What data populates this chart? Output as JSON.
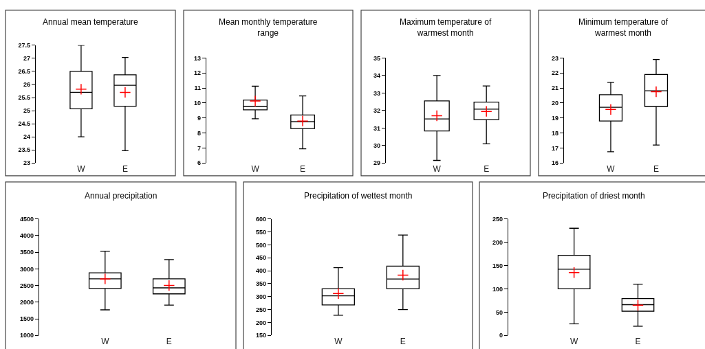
{
  "chart_data": [
    {
      "type": "box",
      "title": "Annual mean temperature",
      "categories": [
        "W",
        "E"
      ],
      "ylim": [
        23,
        27.5
      ],
      "yticks": [
        23,
        23.5,
        24,
        24.5,
        25,
        25.5,
        26,
        26.5,
        27,
        27.5
      ],
      "marker": "cross",
      "boxes": [
        {
          "low": 24,
          "q1": 25.07,
          "median": 25.7,
          "q3": 26.5,
          "high": 27.5,
          "mean": 25.82
        },
        {
          "low": 23.47,
          "q1": 25.17,
          "median": 25.97,
          "q3": 26.37,
          "high": 27.03,
          "mean": 25.7
        }
      ]
    },
    {
      "type": "box",
      "title": "Mean monthly temperature range",
      "categories": [
        "W",
        "E"
      ],
      "ylim": [
        6,
        13
      ],
      "yticks": [
        6,
        7,
        8,
        9,
        10,
        11,
        12,
        13
      ],
      "marker": "cross",
      "boxes": [
        {
          "low": 8.95,
          "q1": 9.55,
          "median": 9.78,
          "q3": 10.2,
          "high": 11.12,
          "mean": 10.13
        },
        {
          "low": 6.95,
          "q1": 8.3,
          "median": 8.75,
          "q3": 9.2,
          "high": 10.47,
          "mean": 8.8
        }
      ]
    },
    {
      "type": "box",
      "title": "Maximum temperature of warmest month",
      "categories": [
        "W",
        "E"
      ],
      "ylim": [
        29,
        35
      ],
      "yticks": [
        29,
        30,
        31,
        32,
        33,
        34,
        35
      ],
      "marker": "cross",
      "boxes": [
        {
          "low": 29.15,
          "q1": 30.83,
          "median": 31.52,
          "q3": 32.55,
          "high": 34,
          "mean": 31.7
        },
        {
          "low": 30.1,
          "q1": 31.48,
          "median": 32.08,
          "q3": 32.48,
          "high": 33.4,
          "mean": 31.95
        }
      ]
    },
    {
      "type": "box",
      "title": "Minimum temperature of warmest month",
      "categories": [
        "W",
        "E"
      ],
      "ylim": [
        16,
        23
      ],
      "yticks": [
        16,
        17,
        18,
        19,
        20,
        21,
        22,
        23
      ],
      "marker": "cross",
      "boxes": [
        {
          "low": 16.75,
          "q1": 18.8,
          "median": 19.72,
          "q3": 20.55,
          "high": 21.38,
          "mean": 19.57
        },
        {
          "low": 17.2,
          "q1": 19.77,
          "median": 20.82,
          "q3": 21.9,
          "high": 22.9,
          "mean": 20.75
        }
      ]
    },
    {
      "type": "box",
      "title": "Annual precipitation",
      "categories": [
        "W",
        "E"
      ],
      "ylim": [
        1000,
        4500
      ],
      "yticks": [
        1000,
        1500,
        2000,
        2500,
        3000,
        3500,
        4000,
        4500
      ],
      "marker": "cross",
      "boxes": [
        {
          "low": 1770,
          "q1": 2410,
          "median": 2700,
          "q3": 2880,
          "high": 3530,
          "mean": 2700
        },
        {
          "low": 1910,
          "q1": 2250,
          "median": 2430,
          "q3": 2700,
          "high": 3280,
          "mean": 2500
        }
      ]
    },
    {
      "type": "box",
      "title": "Precipitation of wettest month",
      "categories": [
        "W",
        "E"
      ],
      "ylim": [
        150,
        600
      ],
      "yticks": [
        150,
        200,
        250,
        300,
        350,
        400,
        450,
        500,
        550,
        600
      ],
      "marker": "cross",
      "boxes": [
        {
          "low": 228,
          "q1": 268,
          "median": 303,
          "q3": 330,
          "high": 412,
          "mean": 312
        },
        {
          "low": 250,
          "q1": 330,
          "median": 368,
          "q3": 418,
          "high": 538,
          "mean": 383
        }
      ]
    },
    {
      "type": "box",
      "title": "Precipitation of driest month",
      "categories": [
        "W",
        "E"
      ],
      "ylim": [
        0,
        250
      ],
      "yticks": [
        0,
        50,
        100,
        150,
        200,
        250
      ],
      "marker": "cross",
      "boxes": [
        {
          "low": 25,
          "q1": 100,
          "median": 142,
          "q3": 172,
          "high": 230,
          "mean": 135
        },
        {
          "low": 20,
          "q1": 52,
          "median": 66,
          "q3": 79,
          "high": 110,
          "mean": 65
        }
      ]
    }
  ]
}
